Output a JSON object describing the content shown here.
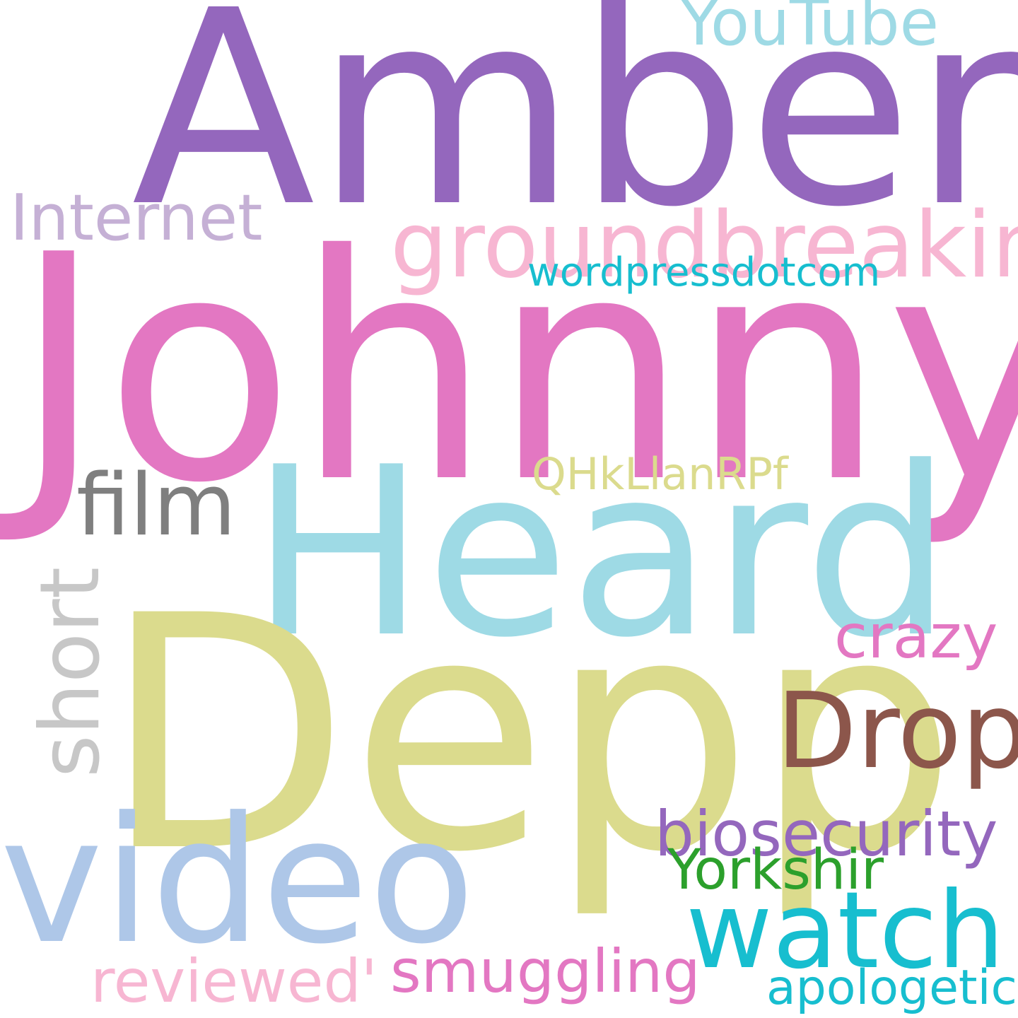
{
  "words": [
    {
      "key": "amber",
      "text": "Amber",
      "color": "#9467bd"
    },
    {
      "key": "johnny",
      "text": "Johnny",
      "color": "#e377c2"
    },
    {
      "key": "heard",
      "text": "Heard",
      "color": "#9edae5"
    },
    {
      "key": "depp",
      "text": "Depp",
      "color": "#dbdb8d"
    },
    {
      "key": "video",
      "text": "video",
      "color": "#aec7e8"
    },
    {
      "key": "groundbreaking",
      "text": "groundbreaking",
      "color": "#f7b6d2"
    },
    {
      "key": "watch",
      "text": "watch",
      "color": "#17becf"
    },
    {
      "key": "drop",
      "text": "Drop",
      "color": "#8c564b"
    },
    {
      "key": "film",
      "text": "film",
      "color": "#7f7f7f"
    },
    {
      "key": "short",
      "text": "short",
      "color": "#c7c7c7",
      "orientation": "vertical"
    },
    {
      "key": "internet",
      "text": "Internet",
      "color": "#c5b0d5"
    },
    {
      "key": "youtube",
      "text": "YouTube",
      "color": "#9edae5"
    },
    {
      "key": "biosecurity",
      "text": "biosecurity",
      "color": "#9467bd"
    },
    {
      "key": "crazy",
      "text": "crazy",
      "color": "#e377c2"
    },
    {
      "key": "smuggling",
      "text": "smuggling",
      "color": "#e377c2"
    },
    {
      "key": "reviewed",
      "text": "reviewed'",
      "color": "#f7b6d2"
    },
    {
      "key": "yorkshir",
      "text": "Yorkshir",
      "color": "#2ca02c"
    },
    {
      "key": "qhkllanrpf",
      "text": "QHkLlanRPf",
      "color": "#dbdb8d"
    },
    {
      "key": "wordpressdotcom",
      "text": "wordpressdotcom",
      "color": "#17becf"
    },
    {
      "key": "apologetic",
      "text": "apologetic",
      "color": "#17becf"
    }
  ]
}
